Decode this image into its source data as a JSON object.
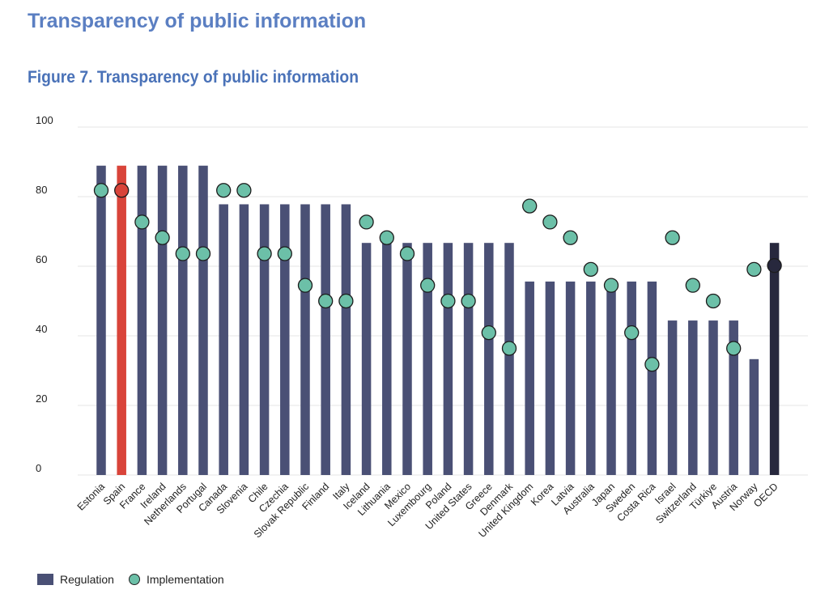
{
  "page": {
    "title": "Transparency of public information",
    "figure_title": "Figure 7. Transparency of public information"
  },
  "legend": {
    "regulation": "Regulation",
    "implementation": "Implementation"
  },
  "colors": {
    "regulation": "#4a5075",
    "highlight": "#d9443a",
    "oecd": "#27283d",
    "implementation": "#6cc0a8",
    "grid": "#e6e6e6"
  },
  "chart_data": {
    "type": "bar",
    "title": "Figure 7. Transparency of public information",
    "xlabel": "",
    "ylabel": "",
    "ylim": [
      0,
      100
    ],
    "yticks": [
      0,
      20,
      40,
      60,
      80,
      100
    ],
    "grid": true,
    "legend_position": "bottom-left",
    "categories": [
      "Estonia",
      "Spain",
      "France",
      "Ireland",
      "Netherlands",
      "Portugal",
      "Canada",
      "Slovenia",
      "Chile",
      "Czechia",
      "Slovak Republic",
      "Finland",
      "Italy",
      "Iceland",
      "Lithuania",
      "Mexico",
      "Luxembourg",
      "Poland",
      "United States",
      "Greece",
      "Denmark",
      "United Kingdom",
      "Korea",
      "Latvia",
      "Australia",
      "Japan",
      "Sweden",
      "Costa Rica",
      "Israel",
      "Switzerland",
      "Türkiye",
      "Austria",
      "Norway",
      "OECD"
    ],
    "series": [
      {
        "name": "Regulation",
        "values": [
          88.9,
          88.9,
          88.9,
          88.9,
          88.9,
          88.9,
          77.8,
          77.8,
          77.8,
          77.8,
          77.8,
          77.8,
          77.8,
          66.7,
          66.7,
          66.7,
          66.7,
          66.7,
          66.7,
          66.7,
          66.7,
          55.6,
          55.6,
          55.6,
          55.6,
          55.6,
          55.6,
          55.6,
          44.4,
          44.4,
          44.4,
          44.4,
          33.3,
          66.7
        ]
      },
      {
        "name": "Implementation",
        "values": [
          81.8,
          81.8,
          72.7,
          68.2,
          63.6,
          63.6,
          81.8,
          81.8,
          63.6,
          63.6,
          54.5,
          50.0,
          50.0,
          72.7,
          68.2,
          63.6,
          54.5,
          50.0,
          50.0,
          40.9,
          36.4,
          77.3,
          72.7,
          68.2,
          59.1,
          54.5,
          40.9,
          31.8,
          68.2,
          54.5,
          50.0,
          36.4,
          59.1,
          60.2
        ]
      }
    ]
  }
}
